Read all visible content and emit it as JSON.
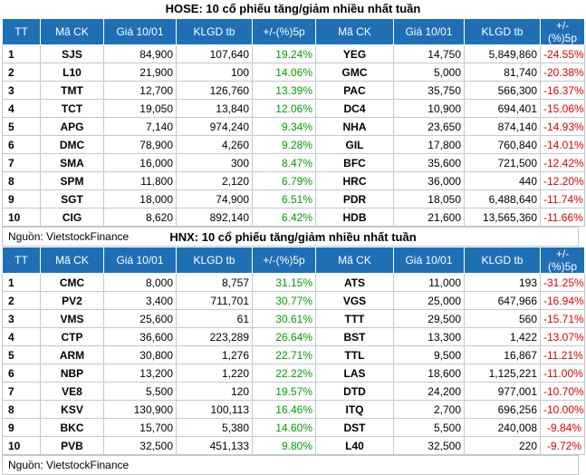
{
  "hose": {
    "title": "HOSE: 10 cổ phiếu tăng/giảm nhiều nhất tuần",
    "headers": [
      "TT",
      "Mã CK",
      "Giá 10/01",
      "KLGD tb",
      "+/-(%)5p",
      "Mã CK",
      "Giá 10/01",
      "KLGD tb",
      "+/-(%)5p"
    ],
    "rows": [
      [
        "1",
        "SJS",
        "84,900",
        "107,640",
        "19.24%",
        "YEG",
        "14,750",
        "5,849,860",
        "-24.55%"
      ],
      [
        "2",
        "L10",
        "21,900",
        "100",
        "14.06%",
        "GMC",
        "5,000",
        "81,740",
        "-20.38%"
      ],
      [
        "3",
        "TMT",
        "12,700",
        "126,760",
        "13.39%",
        "PAC",
        "35,750",
        "566,300",
        "-16.37%"
      ],
      [
        "4",
        "TCT",
        "19,050",
        "13,840",
        "12.06%",
        "DC4",
        "10,900",
        "694,401",
        "-15.06%"
      ],
      [
        "5",
        "APG",
        "7,140",
        "974,240",
        "9.34%",
        "NHA",
        "23,650",
        "874,140",
        "-14.93%"
      ],
      [
        "6",
        "DMC",
        "78,900",
        "4,260",
        "9.28%",
        "GIL",
        "17,800",
        "760,840",
        "-14.01%"
      ],
      [
        "7",
        "SMA",
        "16,000",
        "300",
        "8.47%",
        "BFC",
        "35,600",
        "721,500",
        "-12.42%"
      ],
      [
        "8",
        "SPM",
        "11,800",
        "2,120",
        "6.79%",
        "HRC",
        "36,000",
        "440",
        "-12.20%"
      ],
      [
        "9",
        "SGT",
        "18,000",
        "74,900",
        "6.51%",
        "PDR",
        "18,050",
        "6,488,640",
        "-11.74%"
      ],
      [
        "10",
        "CIG",
        "8,620",
        "892,140",
        "6.42%",
        "HDB",
        "21,600",
        "13,565,360",
        "-11.66%"
      ]
    ],
    "source": "Nguồn: VietstockFinance"
  },
  "hnx": {
    "title": "HNX: 10 cổ phiếu tăng/giảm nhiều nhất tuần",
    "headers": [
      "TT",
      "Mã CK",
      "Giá 10/01",
      "KLGD tb",
      "+/-(%)5p",
      "Mã CK",
      "Giá 10/01",
      "KLGD tb",
      "+/-(%)5p"
    ],
    "rows": [
      [
        "1",
        "CMC",
        "8,000",
        "8,757",
        "31.15%",
        "ATS",
        "11,000",
        "193",
        "-31.25%"
      ],
      [
        "2",
        "PV2",
        "3,400",
        "711,701",
        "30.77%",
        "VGS",
        "25,000",
        "647,966",
        "-16.94%"
      ],
      [
        "3",
        "VMS",
        "25,600",
        "61",
        "30.61%",
        "TTT",
        "29,500",
        "560",
        "-15.71%"
      ],
      [
        "4",
        "CTP",
        "36,600",
        "223,289",
        "26.64%",
        "BST",
        "13,300",
        "1,422",
        "-13.07%"
      ],
      [
        "5",
        "ARM",
        "30,800",
        "1,276",
        "22.71%",
        "TTL",
        "9,500",
        "16,867",
        "-11.21%"
      ],
      [
        "6",
        "NBP",
        "13,200",
        "1,220",
        "22.22%",
        "LAS",
        "18,600",
        "1,125,221",
        "-11.00%"
      ],
      [
        "7",
        "VE8",
        "5,500",
        "120",
        "19.57%",
        "DTD",
        "24,200",
        "977,001",
        "-10.70%"
      ],
      [
        "8",
        "KSV",
        "130,900",
        "100,113",
        "16.46%",
        "ITQ",
        "2,700",
        "696,256",
        "-10.00%"
      ],
      [
        "9",
        "BKC",
        "15,700",
        "5,380",
        "14.60%",
        "DST",
        "5,500",
        "240,008",
        "-9.84%"
      ],
      [
        "10",
        "PVB",
        "32,500",
        "451,133",
        "9.80%",
        "L40",
        "32,500",
        "220",
        "-9.72%"
      ]
    ],
    "source": "Nguồn: VietstockFinance"
  },
  "colors": {
    "header_bg": "#1f6fb5",
    "gain": "#00a000",
    "loss": "#e00000"
  }
}
